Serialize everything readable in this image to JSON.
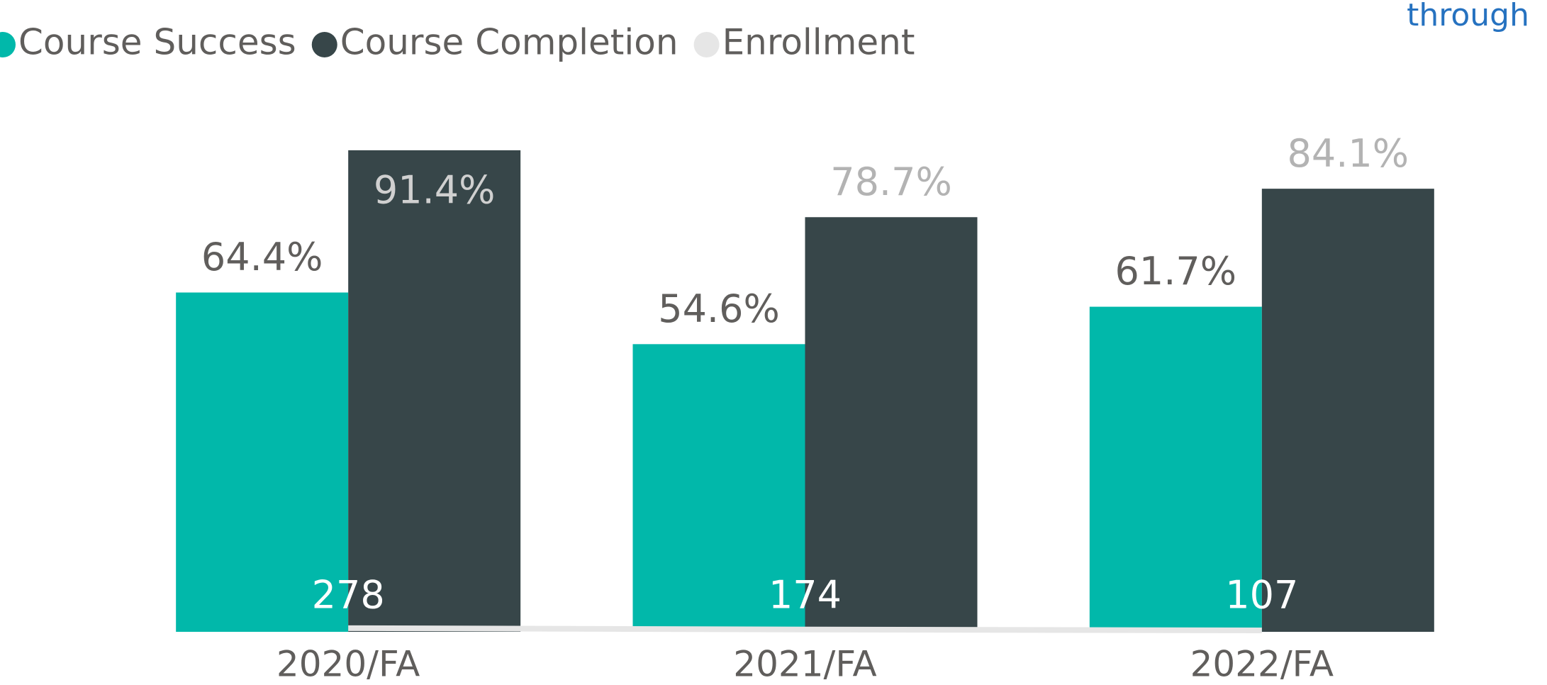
{
  "chart_data": {
    "type": "bar",
    "note_text": "through",
    "categories": [
      "2020/FA",
      "2021/FA",
      "2022/FA"
    ],
    "series": [
      {
        "name": "Course Success",
        "color": "#01B8AA",
        "values": [
          64.4,
          54.6,
          61.7
        ],
        "value_labels": [
          "64.4%",
          "54.6%",
          "61.7%"
        ]
      },
      {
        "name": "Course Completion",
        "color": "#374649",
        "values": [
          91.4,
          78.7,
          84.1
        ],
        "value_labels": [
          "91.4%",
          "78.7%",
          "84.1%"
        ]
      },
      {
        "name": "Enrollment",
        "color": "#E6E6E6",
        "type": "line",
        "axis": "y2",
        "values": [
          278,
          174,
          107
        ]
      }
    ],
    "ylim": [
      0,
      100
    ],
    "y2lim": [
      0,
      40000
    ],
    "grid": false,
    "legend": "top-left"
  }
}
